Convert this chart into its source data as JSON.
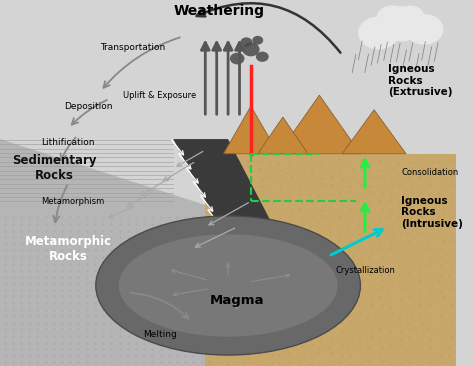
{
  "labels": {
    "weathering": "Weathering",
    "transportation": "Transportation",
    "deposition": "Deposition",
    "lithification": "Lithification",
    "uplift": "Uplift & Exposure",
    "sedimentary": "Sedimentary\nRocks",
    "metamorphism": "Metamorphism",
    "metamorphic": "Metamorphic\nRocks",
    "melting": "Melting",
    "magma": "Magma",
    "crystallization": "Crystallization",
    "consolidation": "Consolidation",
    "igneous_int": "Igneous\nRocks\n(Intrusive)",
    "igneous_ext": "Igneous\nRocks\n(Extrusive)"
  },
  "bg_sky": "#d4d4d4",
  "bg_left_rock": "#b0b0b0",
  "bg_right_sand": "#c8a86a",
  "bg_dark_band": "#404040",
  "magma_outer": "#686868",
  "magma_inner": "#787878",
  "volcano_color": "#c8883a",
  "volcano_edge": "#8B6033",
  "cloud_color": "#e8e8e8",
  "rain_color": "#888888",
  "smoke_color": "#555555",
  "arrow_gray": "#888888",
  "arrow_dark": "#333333",
  "arrow_green": "#22ee44",
  "arrow_cyan": "#00cccc",
  "lava_red": "#ff2020",
  "white": "#ffffff",
  "black": "#111111"
}
